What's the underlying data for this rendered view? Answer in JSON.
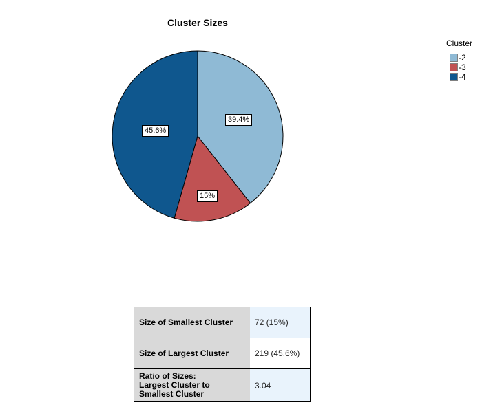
{
  "title": "Cluster Sizes",
  "colors": {
    "slice_light_blue": "#8fbad5",
    "slice_red": "#c05253",
    "slice_dark_blue": "#0f578e",
    "pie_outline": "#000000",
    "legend_swatch_border": "#808080",
    "table_label_bg": "#d9d9d9",
    "table_value_bg_alt": "#e9f3fc",
    "table_value_bg": "#ffffff",
    "table_border": "#000000"
  },
  "chart_data": {
    "type": "pie",
    "title": "Cluster Sizes",
    "legend_title": "Cluster",
    "legend_position": "right",
    "start_angle_deg": 0,
    "direction": "clockwise",
    "slices": [
      {
        "label": "-2",
        "value": 39.4,
        "display": "39.4%",
        "color": "#8fbad5"
      },
      {
        "label": "-3",
        "value": 15,
        "display": "15%",
        "color": "#c05253"
      },
      {
        "label": "-4",
        "value": 45.6,
        "display": "45.6%",
        "color": "#0f578e"
      }
    ]
  },
  "table": {
    "rows": [
      {
        "label": "Size of Smallest Cluster",
        "value": "72 (15%)"
      },
      {
        "label": "Size of Largest Cluster",
        "value": "219 (45.6%)"
      },
      {
        "label": "Ratio of Sizes:\nLargest Cluster to\nSmallest Cluster",
        "value": "3.04"
      }
    ]
  }
}
